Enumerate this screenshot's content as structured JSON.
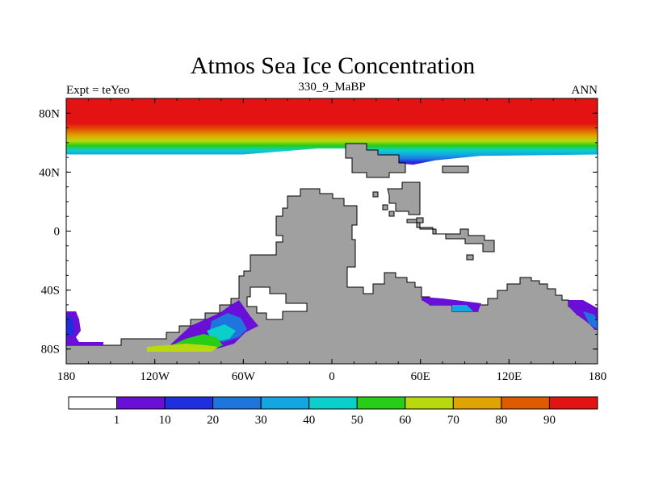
{
  "chart_data": {
    "type": "map",
    "title": "Atmos Sea Ice Concentration",
    "subtitle": "330_9_MaBP",
    "left_label": "Expt = teYeo",
    "right_label": "ANN",
    "lon_range": [
      -180,
      180
    ],
    "lat_range": [
      -90,
      90
    ],
    "x_ticks": [
      {
        "value": -180,
        "label": "180"
      },
      {
        "value": -120,
        "label": "120W"
      },
      {
        "value": -60,
        "label": "60W"
      },
      {
        "value": 0,
        "label": "0"
      },
      {
        "value": 60,
        "label": "60E"
      },
      {
        "value": 120,
        "label": "120E"
      },
      {
        "value": 180,
        "label": "180"
      }
    ],
    "y_ticks": [
      {
        "value": 80,
        "label": "80N"
      },
      {
        "value": 40,
        "label": "40N"
      },
      {
        "value": 0,
        "label": "0"
      },
      {
        "value": -40,
        "label": "40S"
      },
      {
        "value": -80,
        "label": "80S"
      }
    ],
    "colorbar": {
      "thresholds": [
        1,
        10,
        20,
        30,
        40,
        50,
        60,
        70,
        80,
        90
      ],
      "colors": [
        "#ffffff",
        "#6a0fd8",
        "#1f2fe0",
        "#1f74de",
        "#12a7e0",
        "#0bcfca",
        "#27cd17",
        "#b8d90d",
        "#e0a400",
        "#e05a00",
        "#e41313"
      ]
    },
    "land_color": "#a0a0a0",
    "northern_ice_edge": [
      {
        "lon": -180,
        "lat": 52
      },
      {
        "lon": -60,
        "lat": 52
      },
      {
        "lon": -10,
        "lat": 56
      },
      {
        "lon": 15,
        "lat": 56
      },
      {
        "lon": 30,
        "lat": 53
      },
      {
        "lon": 45,
        "lat": 46
      },
      {
        "lon": 55,
        "lat": 45
      },
      {
        "lon": 70,
        "lat": 48
      },
      {
        "lon": 100,
        "lat": 51
      },
      {
        "lon": 180,
        "lat": 52
      }
    ]
  }
}
